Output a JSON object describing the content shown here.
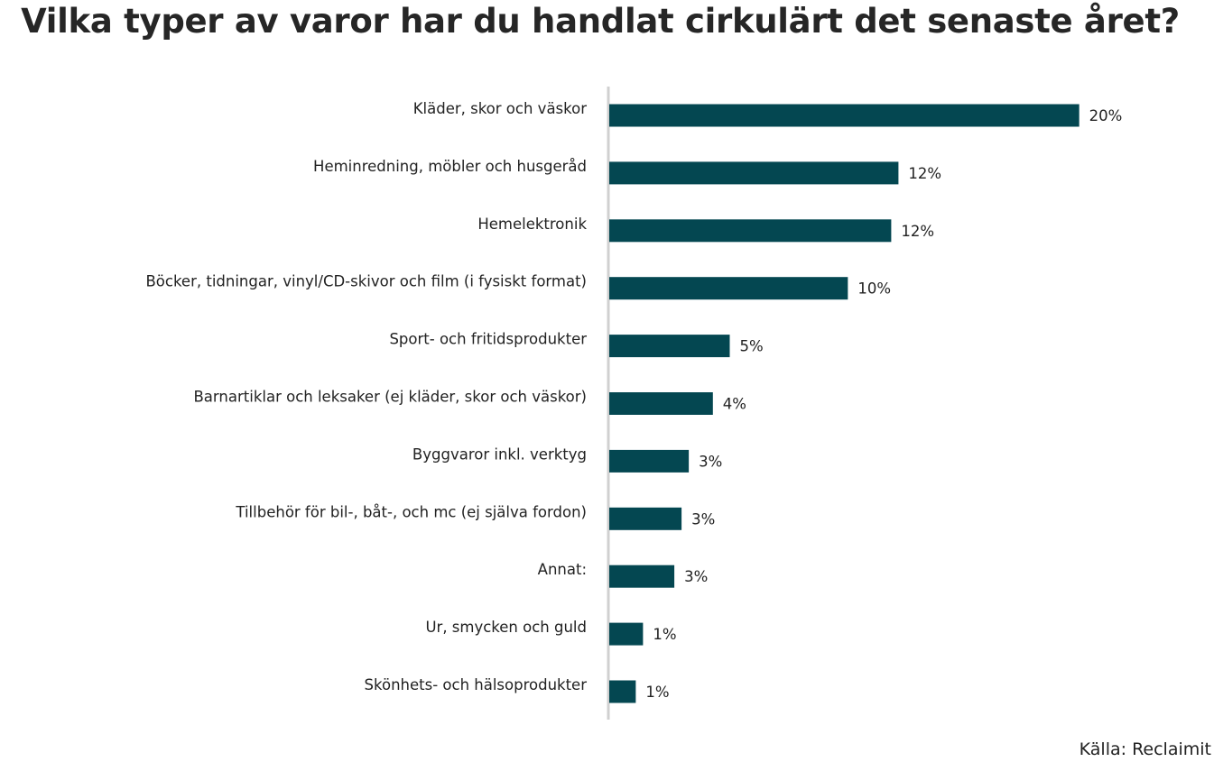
{
  "title": "Vilka typer av varor har du handlat cirkulärt det senaste året?",
  "source": "Källa: Reclaimit",
  "colors": {
    "bar": "#044751",
    "axis": "#d0d0d0",
    "text": "#222222"
  },
  "chart_data": {
    "type": "bar",
    "orientation": "horizontal",
    "title": "Vilka typer av varor har du handlat cirkulärt det senaste året?",
    "categories": [
      "Kläder, skor och väskor",
      "Heminredning, möbler och husgeråd",
      "Hemelektronik",
      "Böcker, tidningar, vinyl/CD-skivor och film (i fysiskt format)",
      "Sport- och fritidsprodukter",
      "Barnartiklar och leksaker (ej kläder, skor och väskor)",
      "Byggvaror inkl. verktyg",
      "Tillbehör för bil-, båt-, och mc (ej själva fordon)",
      "Annat:",
      "Ur, smycken och guld",
      "Skönhets- och hälsoprodukter"
    ],
    "values": [
      19.5,
      12.0,
      11.7,
      9.9,
      5.0,
      4.3,
      3.3,
      3.0,
      2.7,
      1.4,
      1.1
    ],
    "data_labels": [
      "20%",
      "12%",
      "12%",
      "10%",
      "5%",
      "4%",
      "3%",
      "3%",
      "3%",
      "1%",
      "1%"
    ],
    "xlim": [
      0,
      20
    ],
    "grid": false,
    "legend": "none"
  }
}
